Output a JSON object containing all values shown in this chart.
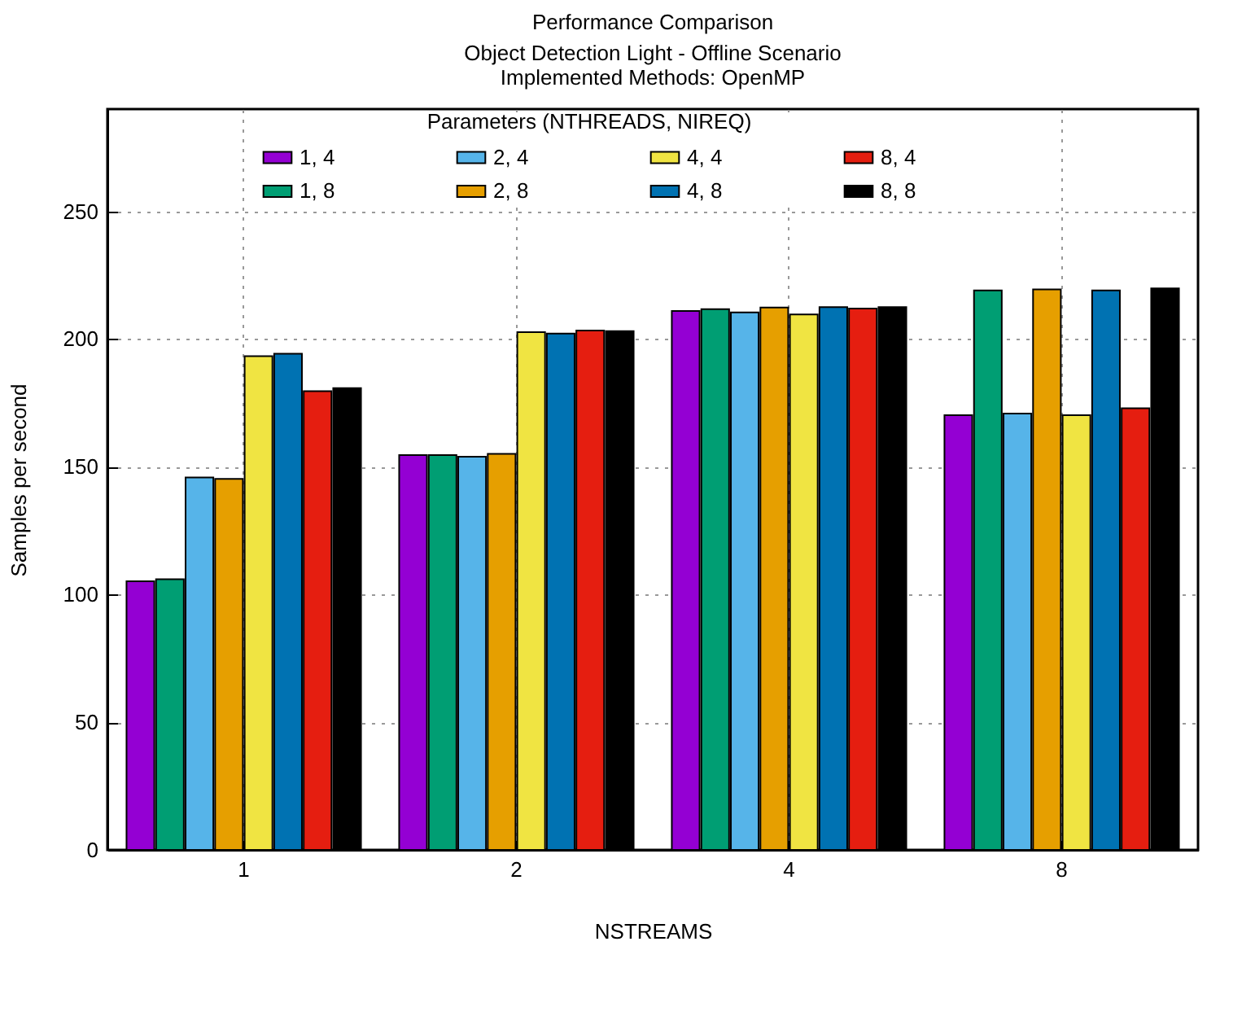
{
  "chart_data": {
    "type": "bar",
    "title": "Performance Comparison",
    "subtitle": "Object Detection Light - Offline Scenario\nImplemented Methods: OpenMP",
    "xlabel": "NSTREAMS",
    "ylabel": "Samples per second",
    "legend_title": "Parameters (NTHREADS, NIREQ)",
    "categories": [
      "1",
      "2",
      "4",
      "8"
    ],
    "series": [
      {
        "name": "1, 4",
        "color": "#9400d3",
        "values": [
          105.2,
          154.6,
          211,
          170.2
        ]
      },
      {
        "name": "1, 8",
        "color": "#009e73",
        "values": [
          106,
          154.6,
          211.7,
          219
        ]
      },
      {
        "name": "2, 4",
        "color": "#56b4e9",
        "values": [
          145.8,
          153.9,
          210.4,
          170.8
        ]
      },
      {
        "name": "2, 8",
        "color": "#e69f00",
        "values": [
          145.2,
          155,
          212.3,
          219.4
        ]
      },
      {
        "name": "4, 4",
        "color": "#f0e442",
        "values": [
          193.3,
          202.7,
          209.6,
          170.2
        ]
      },
      {
        "name": "4, 8",
        "color": "#0072b2",
        "values": [
          194.2,
          202.1,
          212.5,
          219
        ]
      },
      {
        "name": "8, 4",
        "color": "#e51e10",
        "values": [
          179.6,
          203.3,
          211.9,
          172.9
        ]
      },
      {
        "name": "8, 8",
        "color": "#000000",
        "values": [
          180.8,
          203.1,
          212.5,
          219.8
        ]
      }
    ],
    "ylim": [
      0,
      290
    ],
    "yticks": [
      0,
      50,
      100,
      150,
      200,
      250
    ],
    "grid": true,
    "legend": "top"
  }
}
